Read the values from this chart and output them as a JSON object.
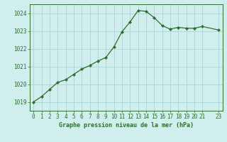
{
  "x_vals": [
    0,
    1,
    2,
    3,
    4,
    5,
    6,
    7,
    8,
    9,
    10,
    11,
    12,
    13,
    14,
    15,
    16,
    17,
    18,
    19,
    20,
    21,
    23
  ],
  "y_vals": [
    1019.0,
    1019.3,
    1019.7,
    1020.1,
    1020.25,
    1020.55,
    1020.85,
    1021.05,
    1021.3,
    1021.5,
    1022.1,
    1022.95,
    1023.5,
    1024.15,
    1024.1,
    1023.75,
    1023.3,
    1023.1,
    1023.2,
    1023.15,
    1023.15,
    1023.25,
    1023.05
  ],
  "title": "Graphe pression niveau de la mer (hPa)",
  "background_color": "#d0eeee",
  "grid_color": "#b0d8d8",
  "line_color": "#2d6e2d",
  "marker_color": "#2d6e2d",
  "ylim": [
    1018.5,
    1024.5
  ],
  "xlim": [
    -0.5,
    23.5
  ],
  "yticks": [
    1019,
    1020,
    1021,
    1022,
    1023,
    1024
  ],
  "xticks": [
    0,
    1,
    2,
    3,
    4,
    5,
    6,
    7,
    8,
    9,
    10,
    11,
    12,
    13,
    14,
    15,
    16,
    17,
    18,
    19,
    20,
    21,
    23
  ],
  "tick_fontsize": 5.5,
  "label_fontsize": 6.0
}
